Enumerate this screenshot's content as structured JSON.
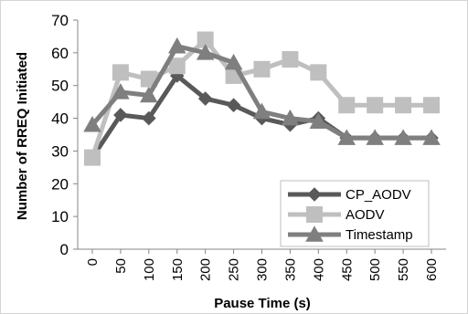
{
  "chart_data": {
    "type": "line",
    "categories": [
      "0",
      "50",
      "100",
      "150",
      "200",
      "250",
      "300",
      "350",
      "400",
      "450",
      "500",
      "550",
      "600"
    ],
    "x": [
      0,
      50,
      100,
      150,
      200,
      250,
      300,
      350,
      400,
      450,
      500,
      550,
      600
    ],
    "series": [
      {
        "name": "CP_AODV",
        "color": "#595959",
        "marker": "diamond",
        "values": [
          28,
          41,
          40,
          53,
          46,
          44,
          40,
          38,
          40,
          34,
          34,
          34,
          34
        ]
      },
      {
        "name": "AODV",
        "color": "#bfbfbf",
        "marker": "square",
        "values": [
          28,
          54,
          52,
          56,
          64,
          53,
          55,
          58,
          54,
          44,
          44,
          44,
          44
        ]
      },
      {
        "name": "Timestamp",
        "color": "#7f7f7f",
        "marker": "triangle",
        "values": [
          38,
          48,
          47,
          62,
          60,
          57,
          42,
          40,
          39,
          34,
          34,
          34,
          34
        ]
      }
    ],
    "xlabel": "Pause Time (s)",
    "ylabel": "Number of RREQ Initiated",
    "ylim": [
      0,
      70
    ],
    "yticks": [
      0,
      10,
      20,
      30,
      40,
      50,
      60,
      70
    ],
    "grid": false,
    "legend_position": "lower-right"
  }
}
